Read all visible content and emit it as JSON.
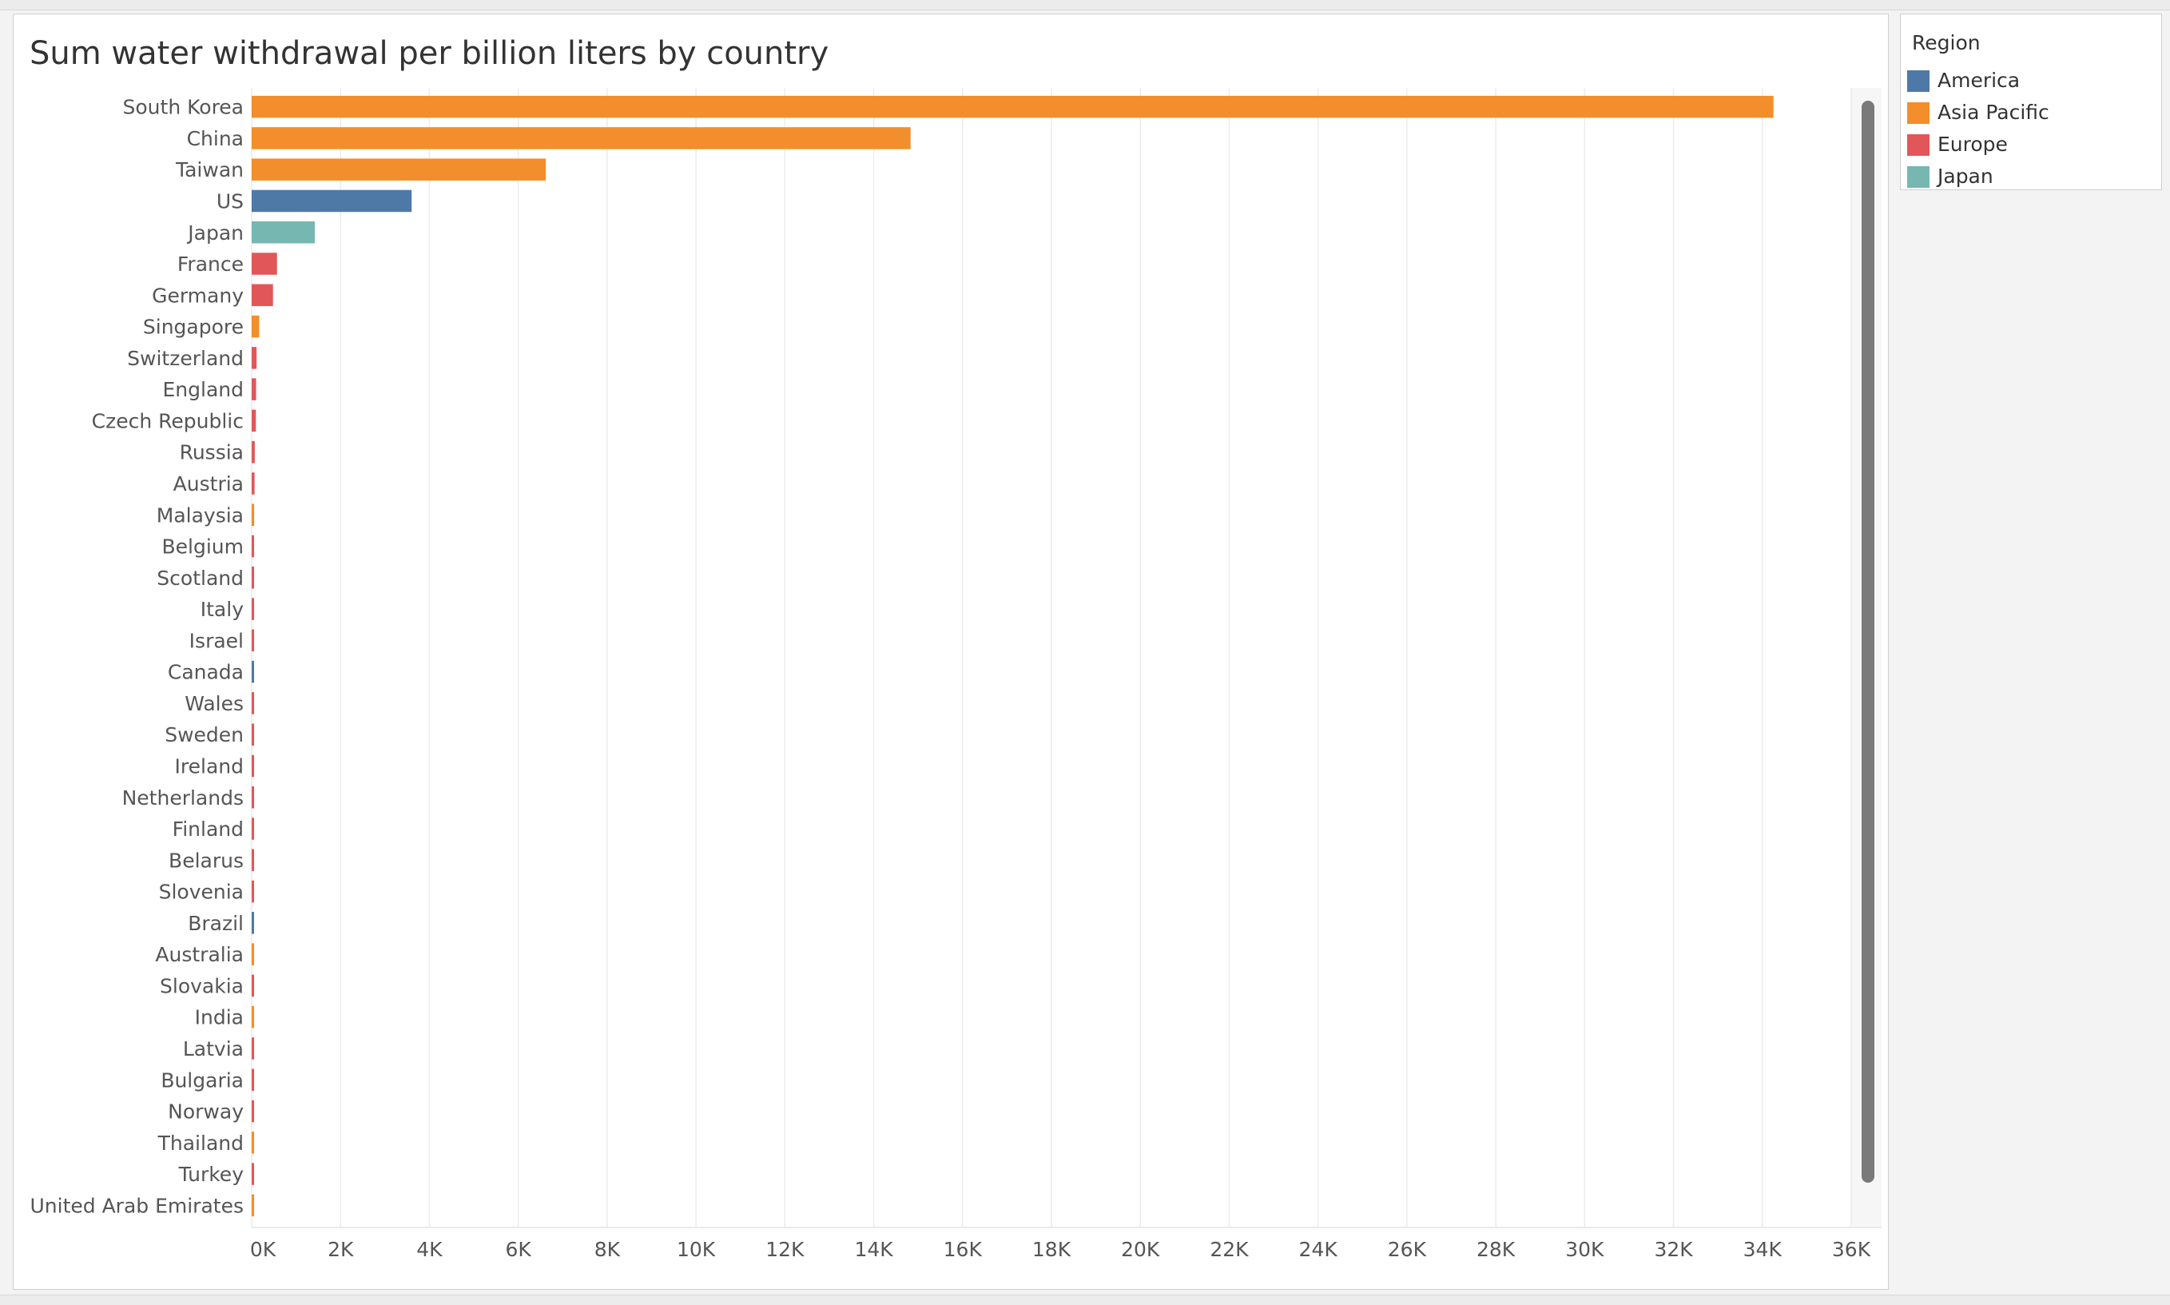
{
  "chart_data": {
    "type": "bar",
    "orientation": "horizontal",
    "title": "Sum water withdrawal per billion liters by country",
    "xlabel": "",
    "ylabel": "",
    "xlim": [
      0,
      36000
    ],
    "x_ticks": [
      0,
      2000,
      4000,
      6000,
      8000,
      10000,
      12000,
      14000,
      16000,
      18000,
      20000,
      22000,
      24000,
      26000,
      28000,
      30000,
      32000,
      34000,
      36000
    ],
    "x_tick_labels": [
      "0K",
      "2K",
      "4K",
      "6K",
      "8K",
      "10K",
      "12K",
      "14K",
      "16K",
      "18K",
      "20K",
      "22K",
      "24K",
      "26K",
      "28K",
      "30K",
      "32K",
      "34K",
      "36K"
    ],
    "grid": "vertical",
    "legend_position": "right",
    "categories": [
      "South Korea",
      "China",
      "Taiwan",
      "US",
      "Japan",
      "France",
      "Germany",
      "Singapore",
      "Switzerland",
      "England",
      "Czech Republic",
      "Russia",
      "Austria",
      "Malaysia",
      "Belgium",
      "Scotland",
      "Italy",
      "Israel",
      "Canada",
      "Wales",
      "Sweden",
      "Ireland",
      "Netherlands",
      "Finland",
      "Belarus",
      "Slovenia",
      "Brazil",
      "Australia",
      "Slovakia",
      "India",
      "Latvia",
      "Bulgaria",
      "Norway",
      "Thailand",
      "Turkey",
      "United Arab Emirates"
    ],
    "values": [
      34250,
      14830,
      6620,
      3600,
      1420,
      570,
      480,
      170,
      110,
      100,
      95,
      70,
      65,
      55,
      45,
      40,
      38,
      35,
      33,
      30,
      28,
      26,
      25,
      24,
      23,
      22,
      21,
      20,
      19,
      18,
      17,
      16,
      15,
      14,
      13,
      12
    ],
    "regions": [
      "Asia Pacific",
      "Asia Pacific",
      "Asia Pacific",
      "America",
      "Japan",
      "Europe",
      "Europe",
      "Asia Pacific",
      "Europe",
      "Europe",
      "Europe",
      "Europe",
      "Europe",
      "Asia Pacific",
      "Europe",
      "Europe",
      "Europe",
      "Europe",
      "America",
      "Europe",
      "Europe",
      "Europe",
      "Europe",
      "Europe",
      "Europe",
      "Europe",
      "America",
      "Asia Pacific",
      "Europe",
      "Asia Pacific",
      "Europe",
      "Europe",
      "Europe",
      "Asia Pacific",
      "Europe",
      "Asia Pacific"
    ]
  },
  "legend": {
    "title": "Region",
    "items": [
      {
        "label": "America",
        "color": "#4e79a7"
      },
      {
        "label": "Asia Pacific",
        "color": "#f28e2b"
      },
      {
        "label": "Europe",
        "color": "#e15759"
      },
      {
        "label": "Japan",
        "color": "#76b7b2"
      }
    ]
  }
}
